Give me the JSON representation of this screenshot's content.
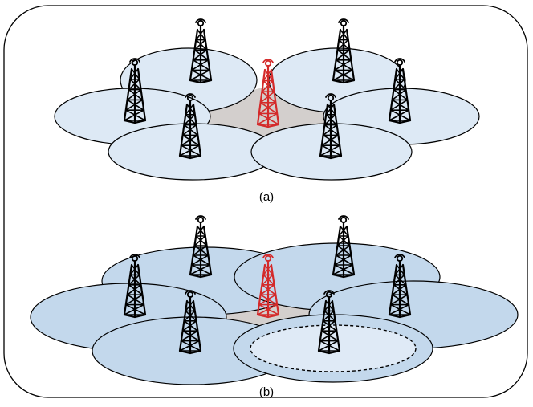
{
  "captions": {
    "a": "(a)",
    "b": "(b)"
  },
  "colors": {
    "cell_light": "#dde9f5",
    "cell_dark": "#c3d8ec",
    "cell_inner": "#dfeaf6",
    "gap": "#d3cfcd",
    "tower_normal": "#000000",
    "tower_highlight": "#d42a2a",
    "outline": "#000000"
  },
  "icons": {
    "tower": "cell-tower-icon",
    "highlight_tower": "cell-tower-highlight-icon"
  }
}
